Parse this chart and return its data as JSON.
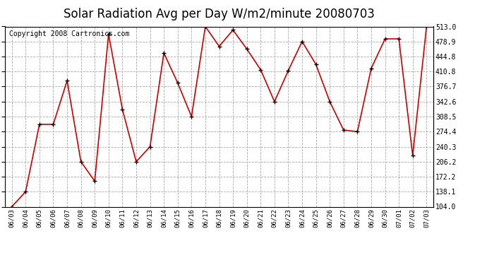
{
  "title": "Solar Radiation Avg per Day W/m2/minute 20080703",
  "copyright": "Copyright 2008 Cartronics.com",
  "x_labels": [
    "06/03",
    "06/04",
    "06/05",
    "06/06",
    "06/07",
    "06/08",
    "06/09",
    "06/10",
    "06/11",
    "06/12",
    "06/13",
    "06/14",
    "06/15",
    "06/16",
    "06/17",
    "06/18",
    "06/19",
    "06/20",
    "06/21",
    "06/22",
    "06/23",
    "06/24",
    "06/25",
    "06/26",
    "06/27",
    "06/28",
    "06/29",
    "06/30",
    "07/01",
    "07/02",
    "07/03"
  ],
  "y_values": [
    104.0,
    138.1,
    291.0,
    291.0,
    390.0,
    206.2,
    162.0,
    496.0,
    325.0,
    206.2,
    240.3,
    453.0,
    385.0,
    308.5,
    513.0,
    468.0,
    505.0,
    462.0,
    415.0,
    342.6,
    413.0,
    479.0,
    427.0,
    342.6,
    278.0,
    274.4,
    418.0,
    485.0,
    485.0,
    220.0,
    513.0
  ],
  "line_color": "#cc0000",
  "marker_color": "#000000",
  "background_color": "#ffffff",
  "grid_color": "#aaaaaa",
  "y_min": 104.0,
  "y_max": 513.0,
  "y_ticks": [
    104.0,
    138.1,
    172.2,
    206.2,
    240.3,
    274.4,
    308.5,
    342.6,
    376.7,
    410.8,
    444.8,
    478.9,
    513.0
  ],
  "title_fontsize": 12,
  "copyright_fontsize": 7
}
